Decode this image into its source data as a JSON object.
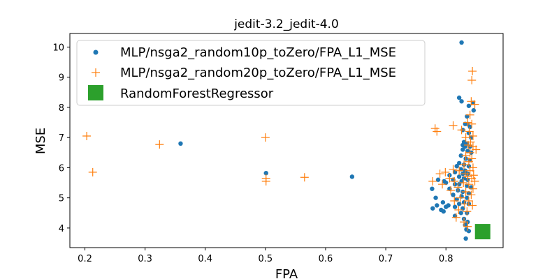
{
  "chart_data": {
    "type": "scatter",
    "title": "jedit-3.2_jedit-4.0",
    "xlabel": "FPA",
    "ylabel": "MSE",
    "xlim": [
      0.175,
      0.895
    ],
    "ylim": [
      3.35,
      10.45
    ],
    "xticks": [
      0.2,
      0.3,
      0.4,
      0.5,
      0.6,
      0.7,
      0.8
    ],
    "yticks": [
      4,
      5,
      6,
      7,
      8,
      9,
      10
    ],
    "xtick_labels": [
      "0.2",
      "0.3",
      "0.4",
      "0.5",
      "0.6",
      "0.7",
      "0.8"
    ],
    "ytick_labels": [
      "4",
      "5",
      "6",
      "7",
      "8",
      "9",
      "10"
    ],
    "legend_position": "top-left",
    "series": [
      {
        "name": "MLP/nsga2_random10p_toZero/FPA_L1_MSE",
        "marker": "dot",
        "color": "#1f77b4",
        "points": [
          [
            0.826,
            10.15
          ],
          [
            0.359,
            6.8
          ],
          [
            0.501,
            5.82
          ],
          [
            0.644,
            5.7
          ],
          [
            0.822,
            8.32
          ],
          [
            0.826,
            8.2
          ],
          [
            0.845,
            8.15
          ],
          [
            0.838,
            8.05
          ],
          [
            0.846,
            7.9
          ],
          [
            0.835,
            7.7
          ],
          [
            0.832,
            7.45
          ],
          [
            0.836,
            7.45
          ],
          [
            0.84,
            7.35
          ],
          [
            0.828,
            7.25
          ],
          [
            0.838,
            7.15
          ],
          [
            0.842,
            7.0
          ],
          [
            0.83,
            6.85
          ],
          [
            0.835,
            6.8
          ],
          [
            0.828,
            6.75
          ],
          [
            0.832,
            6.7
          ],
          [
            0.84,
            6.7
          ],
          [
            0.828,
            6.6
          ],
          [
            0.836,
            6.55
          ],
          [
            0.842,
            6.5
          ],
          [
            0.825,
            6.4
          ],
          [
            0.833,
            6.3
          ],
          [
            0.84,
            6.25
          ],
          [
            0.822,
            6.15
          ],
          [
            0.83,
            6.1
          ],
          [
            0.818,
            6.05
          ],
          [
            0.838,
            6.05
          ],
          [
            0.825,
            5.95
          ],
          [
            0.832,
            5.9
          ],
          [
            0.815,
            5.85
          ],
          [
            0.828,
            5.8
          ],
          [
            0.836,
            5.8
          ],
          [
            0.806,
            5.75
          ],
          [
            0.822,
            5.7
          ],
          [
            0.83,
            5.65
          ],
          [
            0.787,
            5.6
          ],
          [
            0.797,
            5.55
          ],
          [
            0.812,
            5.6
          ],
          [
            0.826,
            5.55
          ],
          [
            0.836,
            5.6
          ],
          [
            0.8,
            5.5
          ],
          [
            0.815,
            5.45
          ],
          [
            0.822,
            5.45
          ],
          [
            0.835,
            5.4
          ],
          [
            0.842,
            5.35
          ],
          [
            0.777,
            5.3
          ],
          [
            0.806,
            5.3
          ],
          [
            0.82,
            5.25
          ],
          [
            0.828,
            5.2
          ],
          [
            0.838,
            5.15
          ],
          [
            0.812,
            5.1
          ],
          [
            0.826,
            5.05
          ],
          [
            0.835,
            5.0
          ],
          [
            0.783,
            5.0
          ],
          [
            0.818,
            4.95
          ],
          [
            0.795,
            4.85
          ],
          [
            0.83,
            4.85
          ],
          [
            0.822,
            4.8
          ],
          [
            0.838,
            4.8
          ],
          [
            0.785,
            4.75
          ],
          [
            0.804,
            4.75
          ],
          [
            0.8,
            4.7
          ],
          [
            0.815,
            4.7
          ],
          [
            0.828,
            4.65
          ],
          [
            0.778,
            4.65
          ],
          [
            0.792,
            4.6
          ],
          [
            0.796,
            4.55
          ],
          [
            0.825,
            4.5
          ],
          [
            0.835,
            4.5
          ],
          [
            0.815,
            4.4
          ],
          [
            0.83,
            4.3
          ],
          [
            0.836,
            4.2
          ],
          [
            0.832,
            4.1
          ],
          [
            0.834,
            3.95
          ],
          [
            0.838,
            3.9
          ],
          [
            0.833,
            3.65
          ]
        ]
      },
      {
        "name": "MLP/nsga2_random20p_toZero/FPA_L1_MSE",
        "marker": "plus",
        "color": "#ff7f0e",
        "points": [
          [
            0.203,
            7.05
          ],
          [
            0.213,
            5.85
          ],
          [
            0.324,
            6.77
          ],
          [
            0.5,
            7.0
          ],
          [
            0.501,
            5.65
          ],
          [
            0.501,
            5.55
          ],
          [
            0.565,
            5.68
          ],
          [
            0.844,
            9.2
          ],
          [
            0.843,
            8.9
          ],
          [
            0.842,
            8.2
          ],
          [
            0.848,
            8.1
          ],
          [
            0.84,
            7.75
          ],
          [
            0.836,
            7.5
          ],
          [
            0.843,
            7.45
          ],
          [
            0.812,
            7.4
          ],
          [
            0.782,
            7.3
          ],
          [
            0.785,
            7.2
          ],
          [
            0.826,
            7.25
          ],
          [
            0.839,
            7.2
          ],
          [
            0.845,
            7.05
          ],
          [
            0.833,
            7.0
          ],
          [
            0.841,
            6.85
          ],
          [
            0.837,
            6.75
          ],
          [
            0.845,
            6.7
          ],
          [
            0.85,
            6.6
          ],
          [
            0.84,
            6.5
          ],
          [
            0.833,
            6.4
          ],
          [
            0.843,
            6.3
          ],
          [
            0.838,
            6.2
          ],
          [
            0.83,
            6.1
          ],
          [
            0.845,
            6.0
          ],
          [
            0.812,
            5.95
          ],
          [
            0.822,
            5.9
          ],
          [
            0.84,
            5.9
          ],
          [
            0.79,
            5.8
          ],
          [
            0.799,
            5.85
          ],
          [
            0.832,
            5.8
          ],
          [
            0.846,
            5.75
          ],
          [
            0.836,
            5.7
          ],
          [
            0.806,
            5.65
          ],
          [
            0.843,
            5.65
          ],
          [
            0.778,
            5.55
          ],
          [
            0.814,
            5.55
          ],
          [
            0.829,
            5.5
          ],
          [
            0.848,
            5.55
          ],
          [
            0.794,
            5.45
          ],
          [
            0.838,
            5.45
          ],
          [
            0.82,
            5.35
          ],
          [
            0.845,
            5.3
          ],
          [
            0.808,
            5.25
          ],
          [
            0.833,
            5.2
          ],
          [
            0.842,
            5.1
          ],
          [
            0.824,
            5.0
          ],
          [
            0.814,
            4.9
          ],
          [
            0.838,
            4.9
          ],
          [
            0.831,
            4.8
          ],
          [
            0.844,
            4.75
          ],
          [
            0.821,
            4.6
          ],
          [
            0.835,
            4.55
          ],
          [
            0.817,
            4.35
          ],
          [
            0.83,
            4.2
          ],
          [
            0.836,
            4.05
          ]
        ]
      },
      {
        "name": "RandomForestRegressor",
        "marker": "square",
        "color": "#2ca02c",
        "points": [
          [
            0.861,
            3.88
          ]
        ]
      }
    ]
  }
}
